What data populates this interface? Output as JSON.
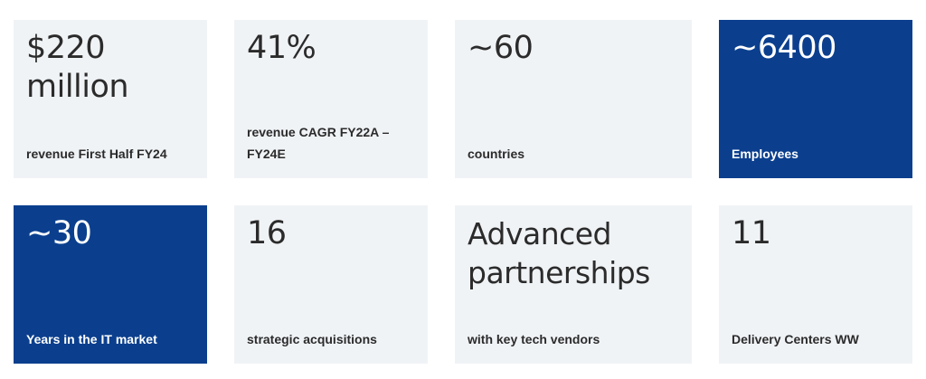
{
  "colors": {
    "card_light": "#f0f3f6",
    "card_blue": "#0b3f8e",
    "text": "#2b2b2b"
  },
  "stats": [
    {
      "value": "$220 million",
      "label": "revenue First Half FY24",
      "style": "light"
    },
    {
      "value": "41%",
      "label": "revenue CAGR FY22A – FY24E",
      "style": "light"
    },
    {
      "value": "~60",
      "label": "countries",
      "style": "light"
    },
    {
      "value": "~6400",
      "label": "Employees",
      "style": "blue"
    },
    {
      "value": "~30",
      "label": "Years in the IT market",
      "style": "blue"
    },
    {
      "value": "16",
      "label": "strategic acquisitions",
      "style": "light"
    },
    {
      "value": "Advanced partnerships",
      "label": "with key tech vendors",
      "style": "light"
    },
    {
      "value": "11",
      "label": "Delivery Centers WW",
      "style": "light"
    }
  ]
}
